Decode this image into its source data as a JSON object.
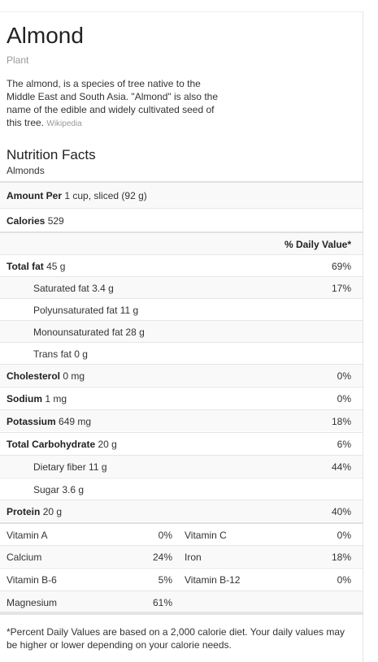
{
  "header": {
    "title": "Almond",
    "subtitle": "Plant",
    "description": "The almond, is a species of tree native to the Middle East and South Asia. \"Almond\" is also the name of the edible and widely cultivated seed of this tree.",
    "source": "Wikipedia"
  },
  "nutrition": {
    "title": "Nutrition Facts",
    "food": "Almonds",
    "amount_per_label": "Amount Per",
    "amount_per_value": "1 cup, sliced (92 g)",
    "calories_label": "Calories",
    "calories_value": "529",
    "daily_value_header": "% Daily Value*",
    "rows": [
      {
        "label": "Total fat",
        "amount": "45 g",
        "dv": "69%"
      },
      {
        "label": "Saturated fat",
        "amount": "3.4 g",
        "dv": "17%"
      },
      {
        "label": "Polyunsaturated fat",
        "amount": "11 g",
        "dv": ""
      },
      {
        "label": "Monounsaturated fat",
        "amount": "28 g",
        "dv": ""
      },
      {
        "label": "Trans fat",
        "amount": "0 g",
        "dv": ""
      },
      {
        "label": "Cholesterol",
        "amount": "0 mg",
        "dv": "0%"
      },
      {
        "label": "Sodium",
        "amount": "1 mg",
        "dv": "0%"
      },
      {
        "label": "Potassium",
        "amount": "649 mg",
        "dv": "18%"
      },
      {
        "label": "Total Carbohydrate",
        "amount": "20 g",
        "dv": "6%"
      },
      {
        "label": "Dietary fiber",
        "amount": "11 g",
        "dv": "44%"
      },
      {
        "label": "Sugar",
        "amount": "3.6 g",
        "dv": ""
      },
      {
        "label": "Protein",
        "amount": "20 g",
        "dv": "40%"
      }
    ],
    "vitamins": [
      {
        "a": "Vitamin A",
        "ap": "0%",
        "b": "Vitamin C",
        "bp": "0%"
      },
      {
        "a": "Calcium",
        "ap": "24%",
        "b": "Iron",
        "bp": "18%"
      },
      {
        "a": "Vitamin B-6",
        "ap": "5%",
        "b": "Vitamin B-12",
        "bp": "0%"
      },
      {
        "a": "Magnesium",
        "ap": "61%",
        "b": "",
        "bp": ""
      }
    ],
    "footnote": "*Percent Daily Values are based on a 2,000 calorie diet. Your daily values may be higher or lower depending on your calorie needs."
  }
}
